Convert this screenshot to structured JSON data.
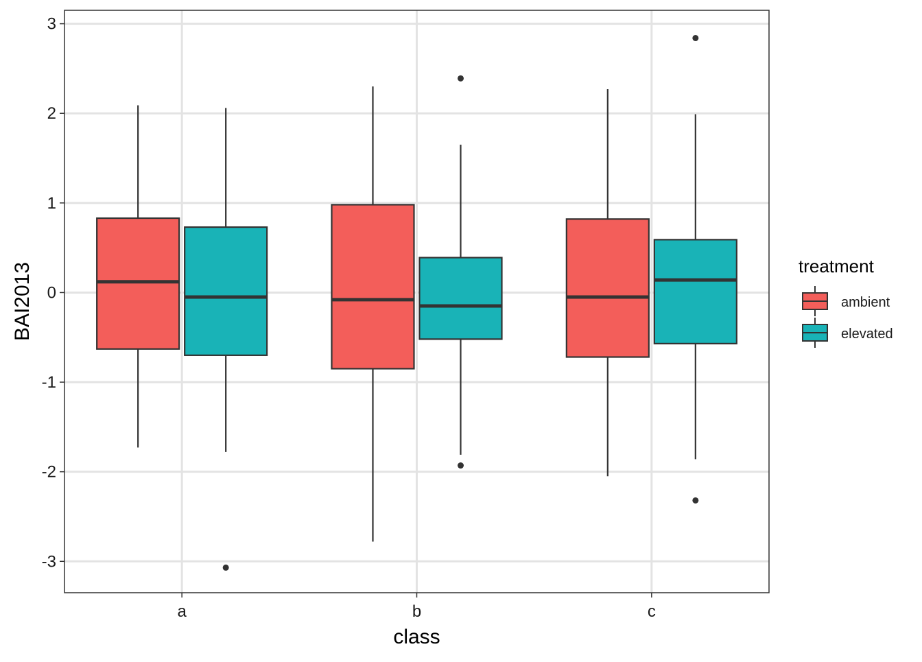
{
  "chart_data": {
    "type": "boxplot",
    "title": "",
    "xlabel": "class",
    "ylabel": "BAI2013",
    "ylim": [
      -3.35,
      3.15
    ],
    "yticks": [
      -3,
      -2,
      -1,
      0,
      1,
      2,
      3
    ],
    "ytick_labels": [
      "-3",
      "-2",
      "-1",
      "0",
      "1",
      "2",
      "3"
    ],
    "categories": [
      "a",
      "b",
      "c"
    ],
    "grid": true,
    "legend": {
      "title": "treatment",
      "position": "right"
    },
    "series": [
      {
        "name": "ambient",
        "color": "#f35e5a",
        "boxes": [
          {
            "category": "a",
            "lower_whisker": -1.73,
            "q1": -0.63,
            "median": 0.12,
            "q3": 0.83,
            "upper_whisker": 2.09,
            "outliers": []
          },
          {
            "category": "b",
            "lower_whisker": -2.78,
            "q1": -0.85,
            "median": -0.08,
            "q3": 0.98,
            "upper_whisker": 2.3,
            "outliers": []
          },
          {
            "category": "c",
            "lower_whisker": -2.05,
            "q1": -0.72,
            "median": -0.05,
            "q3": 0.82,
            "upper_whisker": 2.27,
            "outliers": []
          }
        ]
      },
      {
        "name": "elevated",
        "color": "#19b3b7",
        "boxes": [
          {
            "category": "a",
            "lower_whisker": -1.78,
            "q1": -0.7,
            "median": -0.05,
            "q3": 0.73,
            "upper_whisker": 2.06,
            "outliers": [
              -3.07
            ]
          },
          {
            "category": "b",
            "lower_whisker": -1.81,
            "q1": -0.52,
            "median": -0.15,
            "q3": 0.39,
            "upper_whisker": 1.65,
            "outliers": [
              2.39,
              -1.93
            ]
          },
          {
            "category": "c",
            "lower_whisker": -1.86,
            "q1": -0.57,
            "median": 0.14,
            "q3": 0.59,
            "upper_whisker": 1.99,
            "outliers": [
              2.84,
              -2.32
            ]
          }
        ]
      }
    ]
  }
}
